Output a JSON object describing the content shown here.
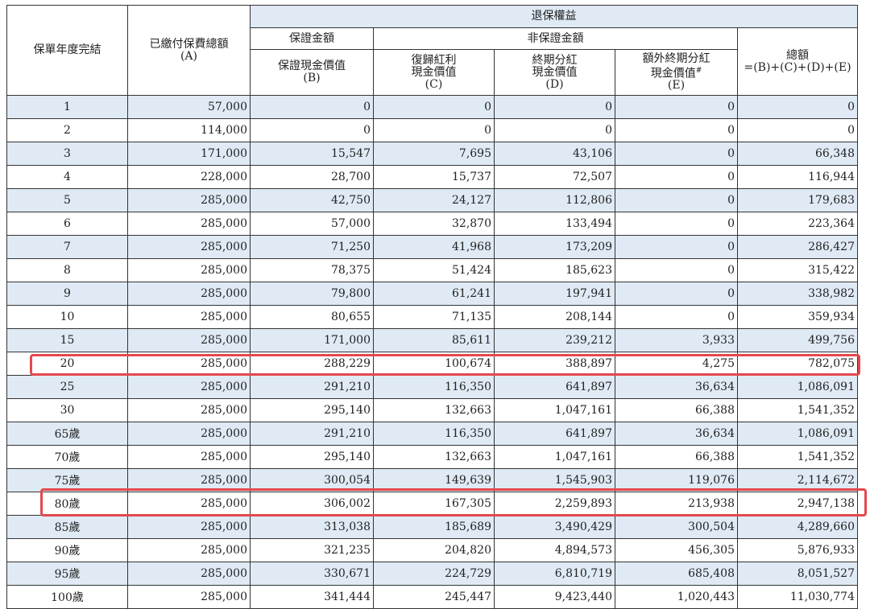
{
  "header": {
    "year_col": "保單年度完結",
    "paid_premium": "已繳付保費總額",
    "paid_premium_sub": "(A)",
    "surrender_value": "退保權益",
    "guaranteed_amount": "保證金額",
    "non_guaranteed_amount": "非保證金額",
    "guaranteed_cash_value": "保證現金價值",
    "guaranteed_cash_value_sub": "(B)",
    "reversionary_bonus_1": "復歸紅利",
    "reversionary_bonus_2": "現金價值",
    "reversionary_bonus_sub": "(C)",
    "terminal_dividend_1": "終期分紅",
    "terminal_dividend_2": "現金價值",
    "terminal_dividend_sub": "(D)",
    "extra_terminal_dividend_1": "額外終期分紅",
    "extra_terminal_dividend_2": "現金價值",
    "extra_terminal_dividend_mark": "#",
    "extra_terminal_dividend_sub": "(E)",
    "total": "總額",
    "total_formula": "=(B)+(C)+(D)+(E)"
  },
  "rows": [
    {
      "year": "1",
      "a": "57,000",
      "b": "0",
      "c": "0",
      "d": "0",
      "e": "0",
      "total": "0"
    },
    {
      "year": "2",
      "a": "114,000",
      "b": "0",
      "c": "0",
      "d": "0",
      "e": "0",
      "total": "0"
    },
    {
      "year": "3",
      "a": "171,000",
      "b": "15,547",
      "c": "7,695",
      "d": "43,106",
      "e": "0",
      "total": "66,348"
    },
    {
      "year": "4",
      "a": "228,000",
      "b": "28,700",
      "c": "15,737",
      "d": "72,507",
      "e": "0",
      "total": "116,944"
    },
    {
      "year": "5",
      "a": "285,000",
      "b": "42,750",
      "c": "24,127",
      "d": "112,806",
      "e": "0",
      "total": "179,683"
    },
    {
      "year": "6",
      "a": "285,000",
      "b": "57,000",
      "c": "32,870",
      "d": "133,494",
      "e": "0",
      "total": "223,364"
    },
    {
      "year": "7",
      "a": "285,000",
      "b": "71,250",
      "c": "41,968",
      "d": "173,209",
      "e": "0",
      "total": "286,427"
    },
    {
      "year": "8",
      "a": "285,000",
      "b": "78,375",
      "c": "51,424",
      "d": "185,623",
      "e": "0",
      "total": "315,422"
    },
    {
      "year": "9",
      "a": "285,000",
      "b": "79,800",
      "c": "61,241",
      "d": "197,941",
      "e": "0",
      "total": "338,982"
    },
    {
      "year": "10",
      "a": "285,000",
      "b": "80,655",
      "c": "71,135",
      "d": "208,144",
      "e": "0",
      "total": "359,934"
    },
    {
      "year": "15",
      "a": "285,000",
      "b": "171,000",
      "c": "85,611",
      "d": "239,212",
      "e": "3,933",
      "total": "499,756"
    },
    {
      "year": "20",
      "a": "285,000",
      "b": "288,229",
      "c": "100,674",
      "d": "388,897",
      "e": "4,275",
      "total": "782,075"
    },
    {
      "year": "25",
      "a": "285,000",
      "b": "291,210",
      "c": "116,350",
      "d": "641,897",
      "e": "36,634",
      "total": "1,086,091"
    },
    {
      "year": "30",
      "a": "285,000",
      "b": "295,140",
      "c": "132,663",
      "d": "1,047,161",
      "e": "66,388",
      "total": "1,541,352"
    },
    {
      "year": "65歲",
      "a": "285,000",
      "b": "291,210",
      "c": "116,350",
      "d": "641,897",
      "e": "36,634",
      "total": "1,086,091"
    },
    {
      "year": "70歲",
      "a": "285,000",
      "b": "295,140",
      "c": "132,663",
      "d": "1,047,161",
      "e": "66,388",
      "total": "1,541,352"
    },
    {
      "year": "75歲",
      "a": "285,000",
      "b": "300,054",
      "c": "149,639",
      "d": "1,545,903",
      "e": "119,076",
      "total": "2,114,672"
    },
    {
      "year": "80歲",
      "a": "285,000",
      "b": "306,002",
      "c": "167,305",
      "d": "2,259,893",
      "e": "213,938",
      "total": "2,947,138"
    },
    {
      "year": "85歲",
      "a": "285,000",
      "b": "313,038",
      "c": "185,689",
      "d": "3,490,429",
      "e": "300,504",
      "total": "4,289,660"
    },
    {
      "year": "90歲",
      "a": "285,000",
      "b": "321,235",
      "c": "204,820",
      "d": "4,894,573",
      "e": "456,305",
      "total": "5,876,933"
    },
    {
      "year": "95歲",
      "a": "285,000",
      "b": "330,671",
      "c": "224,729",
      "d": "6,810,719",
      "e": "685,408",
      "total": "8,051,527"
    },
    {
      "year": "100歲",
      "a": "285,000",
      "b": "341,444",
      "c": "245,447",
      "d": "9,423,440",
      "e": "1,020,443",
      "total": "11,030,774"
    }
  ],
  "colors": {
    "band": "#dfeaf5",
    "highlight": "#e5484d",
    "border": "#333333"
  },
  "highlighted_rows": [
    "20",
    "80歲"
  ]
}
